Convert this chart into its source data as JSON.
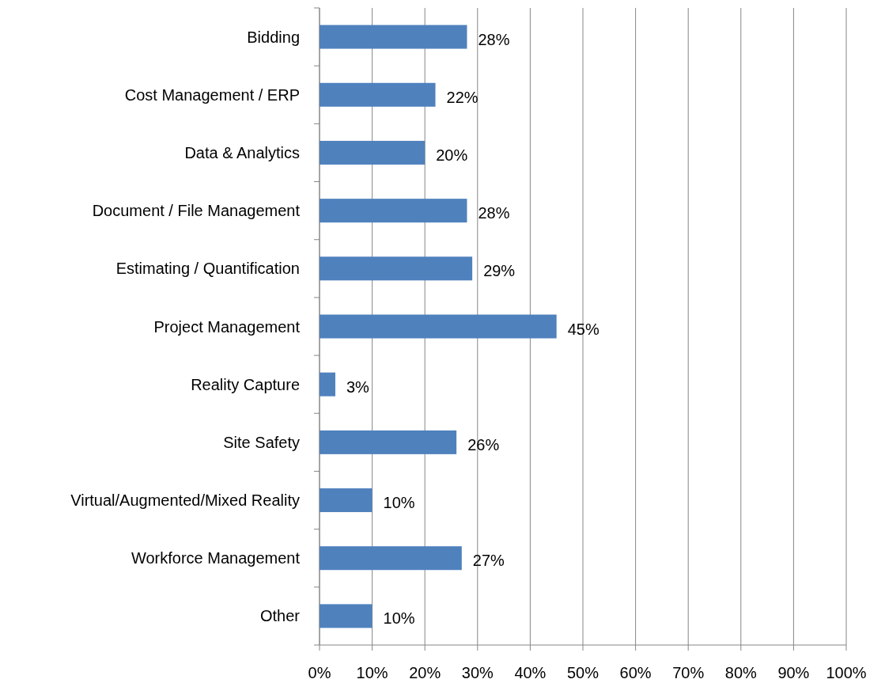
{
  "chart_data": {
    "type": "bar",
    "orientation": "horizontal",
    "categories": [
      "Bidding",
      "Cost Management / ERP",
      "Data & Analytics",
      "Document / File Management",
      "Estimating / Quantification",
      "Project Management",
      "Reality Capture",
      "Site Safety",
      "Virtual/Augmented/Mixed Reality",
      "Workforce Management",
      "Other"
    ],
    "values": [
      28,
      22,
      20,
      28,
      29,
      45,
      3,
      26,
      10,
      27,
      10
    ],
    "color": "#4f81bd",
    "xlim": [
      0,
      100
    ],
    "xticks": [
      {
        "value": 0,
        "label": "0%"
      },
      {
        "value": 10,
        "label": "10%"
      },
      {
        "value": 20,
        "label": "20%"
      },
      {
        "value": 30,
        "label": "30%"
      },
      {
        "value": 40,
        "label": "40%"
      },
      {
        "value": 50,
        "label": "50%"
      },
      {
        "value": 60,
        "label": "60%"
      },
      {
        "value": 70,
        "label": "70%"
      },
      {
        "value": 80,
        "label": "80%"
      },
      {
        "value": 90,
        "label": "90%"
      },
      {
        "value": 100,
        "label": "100%"
      }
    ],
    "value_labels": [
      "28%",
      "22%",
      "20%",
      "28%",
      "29%",
      "45%",
      "3%",
      "26%",
      "10%",
      "27%",
      "10%"
    ],
    "grid": "x"
  }
}
